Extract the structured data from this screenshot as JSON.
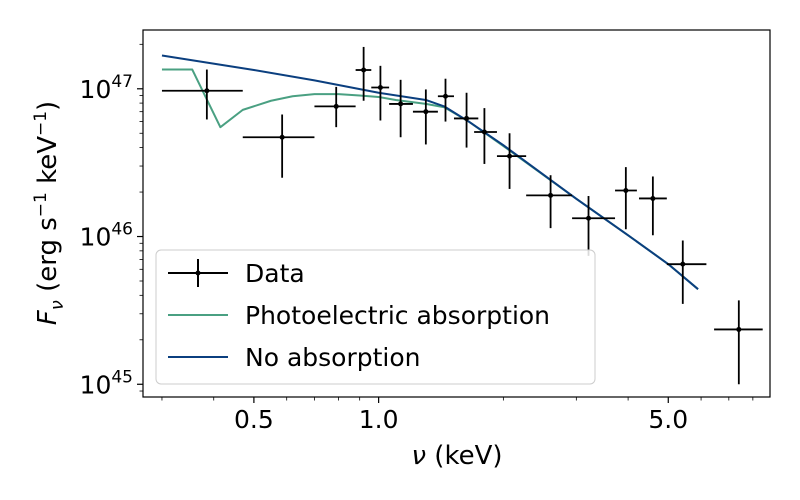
{
  "chart_data": {
    "type": "scatter",
    "title": "",
    "xlabel": "ν (keV)",
    "ylabel": "F_ν (erg s⁻¹ keV⁻¹)",
    "xscale": "log",
    "yscale": "log",
    "xlim": [
      0.27,
      8.8
    ],
    "ylim": [
      8.2e+44,
      2.5e+47
    ],
    "x_ticks": [
      {
        "value": 0.5,
        "label": "0.5"
      },
      {
        "value": 1.0,
        "label": "1.0"
      },
      {
        "value": 5.0,
        "label": "5.0"
      }
    ],
    "y_ticks": [
      {
        "value": 1e+45,
        "base": "10",
        "exp": "45"
      },
      {
        "value": 1e+46,
        "base": "10",
        "exp": "46"
      },
      {
        "value": 1e+47,
        "base": "10",
        "exp": "47"
      }
    ],
    "legend": {
      "position": "lower-left",
      "entries": [
        {
          "label": "Data",
          "marker": "errorbar",
          "color": "#000000"
        },
        {
          "label": "Photoelectric absorption",
          "marker": "line",
          "color": "#4aa082"
        },
        {
          "label": "No absorption",
          "marker": "line",
          "color": "#0b3f7f"
        }
      ]
    },
    "series": [
      {
        "name": "Data",
        "kind": "errorbar",
        "color": "#000000",
        "points": [
          {
            "x": 0.385,
            "xlo": 0.3,
            "xhi": 0.47,
            "y": 9.7e+46,
            "ylo": 6.2e+46,
            "yhi": 1.35e+47
          },
          {
            "x": 0.585,
            "xlo": 0.47,
            "xhi": 0.7,
            "y": 4.7e+46,
            "ylo": 2.5e+46,
            "yhi": 6.7e+46
          },
          {
            "x": 0.79,
            "xlo": 0.7,
            "xhi": 0.88,
            "y": 7.6e+46,
            "ylo": 5.5e+46,
            "yhi": 1.03e+47
          },
          {
            "x": 0.92,
            "xlo": 0.88,
            "xhi": 0.96,
            "y": 1.34e+47,
            "ylo": 8.3e+46,
            "yhi": 1.92e+47
          },
          {
            "x": 1.01,
            "xlo": 0.96,
            "xhi": 1.06,
            "y": 1.02e+47,
            "ylo": 6.1e+46,
            "yhi": 1.43e+47
          },
          {
            "x": 1.13,
            "xlo": 1.06,
            "xhi": 1.21,
            "y": 7.9e+46,
            "ylo": 4.7e+46,
            "yhi": 1.15e+47
          },
          {
            "x": 1.3,
            "xlo": 1.21,
            "xhi": 1.39,
            "y": 7e+46,
            "ylo": 4.2e+46,
            "yhi": 9.9e+46
          },
          {
            "x": 1.45,
            "xlo": 1.39,
            "xhi": 1.52,
            "y": 8.9e+46,
            "ylo": 6e+46,
            "yhi": 1.17e+47
          },
          {
            "x": 1.63,
            "xlo": 1.52,
            "xhi": 1.74,
            "y": 6.3e+46,
            "ylo": 4e+46,
            "yhi": 9.4e+46
          },
          {
            "x": 1.8,
            "xlo": 1.7,
            "xhi": 1.93,
            "y": 5.1e+46,
            "ylo": 3.1e+46,
            "yhi": 7.4e+46
          },
          {
            "x": 2.07,
            "xlo": 1.93,
            "xhi": 2.27,
            "y": 3.5e+46,
            "ylo": 2.1e+46,
            "yhi": 5e+46
          },
          {
            "x": 2.6,
            "xlo": 2.27,
            "xhi": 2.93,
            "y": 1.9e+46,
            "ylo": 1.14e+46,
            "yhi": 2.6e+46
          },
          {
            "x": 3.21,
            "xlo": 2.93,
            "xhi": 3.72,
            "y": 1.33e+46,
            "ylo": 7.4e+45,
            "yhi": 1.88e+46
          },
          {
            "x": 3.95,
            "xlo": 3.72,
            "xhi": 4.2,
            "y": 2.05e+46,
            "ylo": 1.12e+46,
            "yhi": 2.95e+46
          },
          {
            "x": 4.59,
            "xlo": 4.25,
            "xhi": 4.96,
            "y": 1.81e+46,
            "ylo": 1.02e+46,
            "yhi": 2.55e+46
          },
          {
            "x": 5.42,
            "xlo": 4.96,
            "xhi": 6.18,
            "y": 6.5e+45,
            "ylo": 3.5e+45,
            "yhi": 9.4e+45
          },
          {
            "x": 7.4,
            "xlo": 6.45,
            "xhi": 8.45,
            "y": 2.35e+45,
            "ylo": 1e+45,
            "yhi": 3.7e+45
          }
        ]
      },
      {
        "name": "Photoelectric absorption",
        "kind": "line",
        "color": "#4aa082",
        "points": [
          {
            "x": 0.3,
            "y": 1.35e+47
          },
          {
            "x": 0.355,
            "y": 1.35e+47
          },
          {
            "x": 0.415,
            "y": 5.5e+46
          },
          {
            "x": 0.47,
            "y": 7.2e+46
          },
          {
            "x": 0.55,
            "y": 8.3e+46
          },
          {
            "x": 0.62,
            "y": 8.9e+46
          },
          {
            "x": 0.7,
            "y": 9.2e+46
          },
          {
            "x": 0.8,
            "y": 9.2e+46
          },
          {
            "x": 0.9,
            "y": 9e+46
          },
          {
            "x": 1.0,
            "y": 8.8e+46
          },
          {
            "x": 1.1,
            "y": 8.4e+46
          },
          {
            "x": 1.3,
            "y": 7.9e+46
          },
          {
            "x": 1.44,
            "y": 7.5e+46
          },
          {
            "x": 1.65,
            "y": 6e+46
          },
          {
            "x": 2.0,
            "y": 4.1e+46
          },
          {
            "x": 3.0,
            "y": 1.8e+46
          },
          {
            "x": 4.0,
            "y": 1.02e+46
          },
          {
            "x": 5.0,
            "y": 6.5e+45
          },
          {
            "x": 5.9,
            "y": 4.4e+45
          }
        ]
      },
      {
        "name": "No absorption",
        "kind": "line",
        "color": "#0b3f7f",
        "points": [
          {
            "x": 0.3,
            "y": 1.68e+47
          },
          {
            "x": 0.5,
            "y": 1.34e+47
          },
          {
            "x": 0.7,
            "y": 1.14e+47
          },
          {
            "x": 1.0,
            "y": 9.4e+46
          },
          {
            "x": 1.3,
            "y": 8.4e+46
          },
          {
            "x": 1.44,
            "y": 7.6e+46
          },
          {
            "x": 1.65,
            "y": 6e+46
          },
          {
            "x": 2.0,
            "y": 4.15e+46
          },
          {
            "x": 3.0,
            "y": 1.8e+46
          },
          {
            "x": 4.0,
            "y": 1.02e+46
          },
          {
            "x": 5.0,
            "y": 6.5e+45
          },
          {
            "x": 5.9,
            "y": 4.4e+45
          }
        ]
      }
    ]
  }
}
